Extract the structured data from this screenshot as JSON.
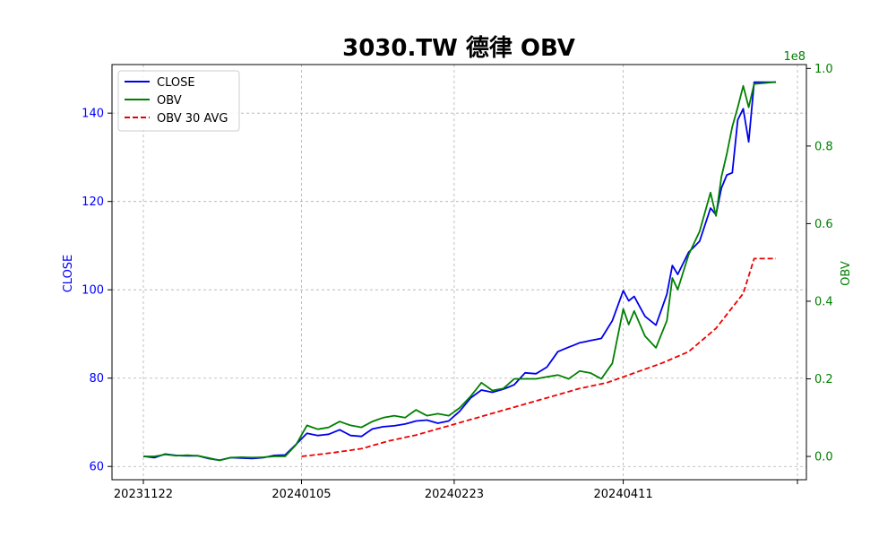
{
  "chart_data": {
    "type": "line",
    "title": "3030.TW 德律 OBV",
    "xlabel": "",
    "ylabel_left": "CLOSE",
    "ylabel_right": "OBV",
    "right_axis_offset_text": "1e8",
    "x_tick_labels": [
      "20231122",
      "20240105",
      "20240223",
      "20240411"
    ],
    "x_tick_index": [
      0,
      29,
      57,
      88
    ],
    "n_points": 117,
    "ylim_left": [
      57,
      151
    ],
    "ylim_right": [
      -0.06,
      1.01
    ],
    "yticks_left": [
      "60",
      "80",
      "100",
      "120",
      "140"
    ],
    "yticks_right": [
      "0.0",
      "0.2",
      "0.4",
      "0.6",
      "0.8",
      "1.0"
    ],
    "grid": true,
    "legend_position": "top-left",
    "colors": {
      "close": "#0000ee",
      "obv": "#008000",
      "obv_avg": "#ee0000",
      "left_axis": "#0000ff",
      "right_axis": "#008000"
    },
    "series": [
      {
        "name": "CLOSE",
        "axis": "left",
        "style": "solid",
        "keypoints": [
          [
            0,
            62.3
          ],
          [
            2,
            62.0
          ],
          [
            4,
            62.8
          ],
          [
            6,
            62.5
          ],
          [
            8,
            62.4
          ],
          [
            10,
            62.4
          ],
          [
            12,
            61.8
          ],
          [
            14,
            61.4
          ],
          [
            16,
            62.0
          ],
          [
            18,
            61.9
          ],
          [
            20,
            61.8
          ],
          [
            22,
            62.0
          ],
          [
            24,
            62.5
          ],
          [
            26,
            62.6
          ],
          [
            28,
            65.0
          ],
          [
            30,
            67.5
          ],
          [
            32,
            67.0
          ],
          [
            34,
            67.3
          ],
          [
            36,
            68.3
          ],
          [
            38,
            67.0
          ],
          [
            40,
            66.8
          ],
          [
            42,
            68.5
          ],
          [
            44,
            69.0
          ],
          [
            46,
            69.2
          ],
          [
            48,
            69.6
          ],
          [
            50,
            70.3
          ],
          [
            52,
            70.5
          ],
          [
            54,
            69.8
          ],
          [
            56,
            70.3
          ],
          [
            58,
            72.5
          ],
          [
            60,
            75.5
          ],
          [
            62,
            77.3
          ],
          [
            64,
            76.8
          ],
          [
            66,
            77.5
          ],
          [
            68,
            78.5
          ],
          [
            70,
            81.2
          ],
          [
            72,
            81.0
          ],
          [
            74,
            82.5
          ],
          [
            76,
            86.0
          ],
          [
            78,
            87.0
          ],
          [
            80,
            88.0
          ],
          [
            82,
            88.5
          ],
          [
            84,
            89.0
          ],
          [
            86,
            93.0
          ],
          [
            88,
            99.8
          ],
          [
            89,
            97.5
          ],
          [
            90,
            98.5
          ],
          [
            92,
            94.0
          ],
          [
            94,
            92.0
          ],
          [
            96,
            99.0
          ],
          [
            97,
            105.5
          ],
          [
            98,
            103.5
          ],
          [
            100,
            108.5
          ],
          [
            102,
            111.0
          ],
          [
            104,
            118.5
          ],
          [
            105,
            117.0
          ],
          [
            106,
            123.0
          ],
          [
            107,
            126.0
          ],
          [
            108,
            126.5
          ],
          [
            109,
            138.5
          ],
          [
            110,
            141.0
          ],
          [
            111,
            133.5
          ],
          [
            112,
            147.0
          ],
          [
            116,
            147.0
          ]
        ]
      },
      {
        "name": "OBV",
        "axis": "right",
        "style": "solid",
        "keypoints": [
          [
            0,
            0.0
          ],
          [
            2,
            0.0
          ],
          [
            4,
            0.005
          ],
          [
            6,
            0.002
          ],
          [
            8,
            0.003
          ],
          [
            10,
            0.002
          ],
          [
            12,
            -0.004
          ],
          [
            14,
            -0.01
          ],
          [
            16,
            -0.003
          ],
          [
            18,
            -0.002
          ],
          [
            20,
            -0.003
          ],
          [
            22,
            -0.002
          ],
          [
            24,
            0.0
          ],
          [
            26,
            0.0
          ],
          [
            28,
            0.03
          ],
          [
            30,
            0.08
          ],
          [
            32,
            0.07
          ],
          [
            34,
            0.075
          ],
          [
            36,
            0.09
          ],
          [
            38,
            0.08
          ],
          [
            40,
            0.075
          ],
          [
            42,
            0.09
          ],
          [
            44,
            0.1
          ],
          [
            46,
            0.105
          ],
          [
            48,
            0.1
          ],
          [
            50,
            0.12
          ],
          [
            52,
            0.105
          ],
          [
            54,
            0.11
          ],
          [
            56,
            0.105
          ],
          [
            58,
            0.125
          ],
          [
            60,
            0.155
          ],
          [
            62,
            0.19
          ],
          [
            64,
            0.17
          ],
          [
            66,
            0.175
          ],
          [
            68,
            0.2
          ],
          [
            70,
            0.2
          ],
          [
            72,
            0.2
          ],
          [
            74,
            0.205
          ],
          [
            76,
            0.21
          ],
          [
            78,
            0.2
          ],
          [
            80,
            0.22
          ],
          [
            82,
            0.215
          ],
          [
            84,
            0.2
          ],
          [
            86,
            0.24
          ],
          [
            88,
            0.38
          ],
          [
            89,
            0.34
          ],
          [
            90,
            0.375
          ],
          [
            92,
            0.31
          ],
          [
            94,
            0.28
          ],
          [
            96,
            0.35
          ],
          [
            97,
            0.46
          ],
          [
            98,
            0.43
          ],
          [
            100,
            0.52
          ],
          [
            102,
            0.58
          ],
          [
            104,
            0.68
          ],
          [
            105,
            0.62
          ],
          [
            106,
            0.72
          ],
          [
            107,
            0.78
          ],
          [
            108,
            0.85
          ],
          [
            109,
            0.9
          ],
          [
            110,
            0.955
          ],
          [
            111,
            0.9
          ],
          [
            112,
            0.96
          ],
          [
            116,
            0.965
          ]
        ]
      },
      {
        "name": "OBV 30 AVG",
        "axis": "right",
        "style": "dashed",
        "start_index": 29,
        "keypoints": [
          [
            29,
            0.0
          ],
          [
            35,
            0.01
          ],
          [
            40,
            0.02
          ],
          [
            45,
            0.04
          ],
          [
            50,
            0.055
          ],
          [
            55,
            0.075
          ],
          [
            60,
            0.095
          ],
          [
            65,
            0.115
          ],
          [
            70,
            0.135
          ],
          [
            75,
            0.155
          ],
          [
            80,
            0.175
          ],
          [
            85,
            0.19
          ],
          [
            90,
            0.215
          ],
          [
            95,
            0.24
          ],
          [
            100,
            0.27
          ],
          [
            105,
            0.33
          ],
          [
            110,
            0.42
          ],
          [
            112,
            0.51
          ],
          [
            116,
            0.51
          ]
        ]
      }
    ]
  }
}
